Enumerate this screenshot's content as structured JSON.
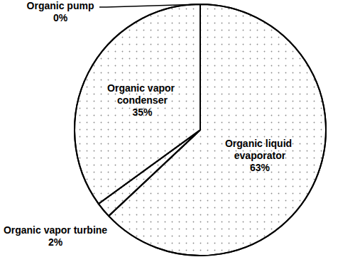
{
  "chart_data": {
    "type": "pie",
    "categories": [
      "Organic liquid evaporator",
      "Organic vapor turbine",
      "Organic vapor condenser",
      "Organic pump"
    ],
    "values": [
      63,
      2,
      35,
      0
    ],
    "value_labels": [
      "63%",
      "2%",
      "35%",
      "0%"
    ],
    "colors": [
      "#ffffff",
      "#ffffff",
      "#ffffff",
      "#ffffff"
    ],
    "data_labels": true
  }
}
